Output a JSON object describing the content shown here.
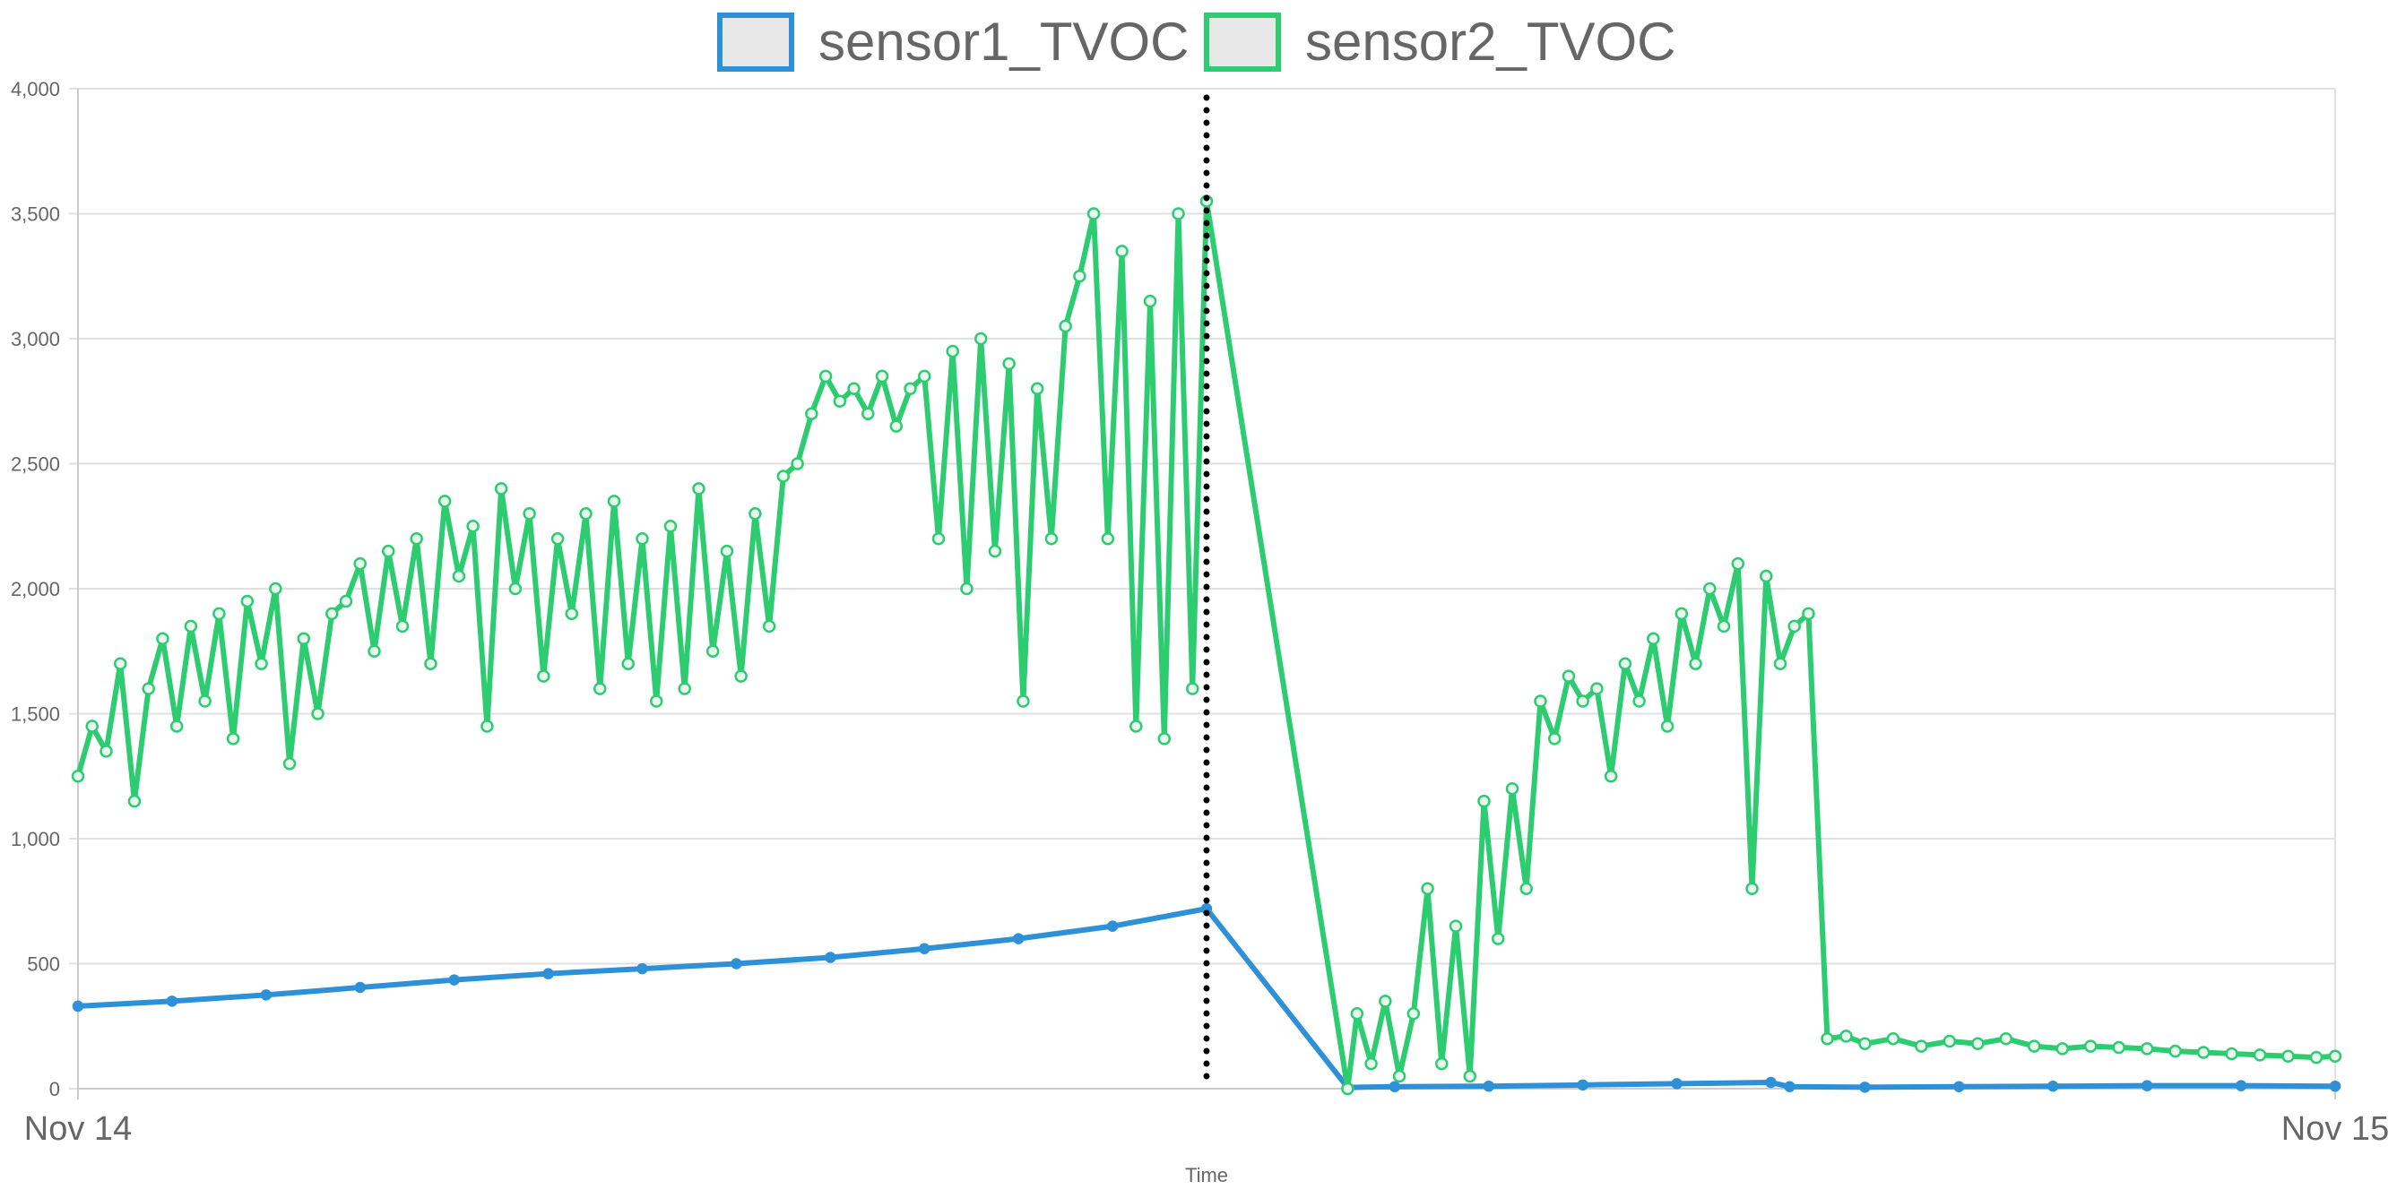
{
  "chart_data": {
    "type": "line",
    "xlabel": "Time",
    "ylabel": "",
    "ylim": [
      0,
      4000
    ],
    "yticks": [
      "0",
      "500",
      "1,000",
      "1,500",
      "2,000",
      "2,500",
      "3,000",
      "3,500",
      "4,000"
    ],
    "ytick_values": [
      0,
      500,
      1000,
      1500,
      2000,
      2500,
      3000,
      3500,
      4000
    ],
    "xlim": [
      "Nov 14 00:00",
      "Nov 15 00:00"
    ],
    "xticks": [
      "Nov 14",
      "Nov 15"
    ],
    "x_unit": "hours since Nov 14 00:00",
    "grid": true,
    "legend_position": "top",
    "annotation": {
      "type": "vertical-dotted-line",
      "x_hours": 12.0
    },
    "series": [
      {
        "name": "sensor1_TVOC",
        "color": "#2e91d8",
        "x": [
          0,
          1,
          2,
          3,
          4,
          5,
          6,
          7,
          8,
          9,
          10,
          11,
          12,
          13.5,
          14,
          15,
          16,
          17,
          18,
          18.2,
          19,
          20,
          21,
          22,
          23,
          24
        ],
        "values": [
          330,
          350,
          375,
          405,
          435,
          460,
          480,
          500,
          525,
          560,
          600,
          650,
          720,
          5,
          8,
          10,
          15,
          20,
          25,
          8,
          6,
          8,
          10,
          12,
          12,
          10
        ]
      },
      {
        "name": "sensor2_TVOC",
        "color": "#2ecc71",
        "x": [
          0,
          0.15,
          0.3,
          0.45,
          0.6,
          0.75,
          0.9,
          1.05,
          1.2,
          1.35,
          1.5,
          1.65,
          1.8,
          1.95,
          2.1,
          2.25,
          2.4,
          2.55,
          2.7,
          2.85,
          3.0,
          3.15,
          3.3,
          3.45,
          3.6,
          3.75,
          3.9,
          4.05,
          4.2,
          4.35,
          4.5,
          4.65,
          4.8,
          4.95,
          5.1,
          5.25,
          5.4,
          5.55,
          5.7,
          5.85,
          6.0,
          6.15,
          6.3,
          6.45,
          6.6,
          6.75,
          6.9,
          7.05,
          7.2,
          7.35,
          7.5,
          7.65,
          7.8,
          7.95,
          8.1,
          8.25,
          8.4,
          8.55,
          8.7,
          8.85,
          9.0,
          9.15,
          9.3,
          9.45,
          9.6,
          9.75,
          9.9,
          10.05,
          10.2,
          10.35,
          10.5,
          10.65,
          10.8,
          10.95,
          11.1,
          11.25,
          11.4,
          11.55,
          11.7,
          11.85,
          12.0,
          13.5,
          13.6,
          13.75,
          13.9,
          14.05,
          14.2,
          14.35,
          14.5,
          14.65,
          14.8,
          14.95,
          15.1,
          15.25,
          15.4,
          15.55,
          15.7,
          15.85,
          16.0,
          16.15,
          16.3,
          16.45,
          16.6,
          16.75,
          16.9,
          17.05,
          17.2,
          17.35,
          17.5,
          17.65,
          17.8,
          17.95,
          18.1,
          18.25,
          18.4,
          18.6,
          18.8,
          19.0,
          19.3,
          19.6,
          19.9,
          20.2,
          20.5,
          20.8,
          21.1,
          21.4,
          21.7,
          22.0,
          22.3,
          22.6,
          22.9,
          23.2,
          23.5,
          23.8,
          24.0
        ],
        "values": [
          1250,
          1450,
          1350,
          1700,
          1150,
          1600,
          1800,
          1450,
          1850,
          1550,
          1900,
          1400,
          1950,
          1700,
          2000,
          1300,
          1800,
          1500,
          1900,
          1950,
          2100,
          1750,
          2150,
          1850,
          2200,
          1700,
          2350,
          2050,
          2250,
          1450,
          2400,
          2000,
          2300,
          1650,
          2200,
          1900,
          2300,
          1600,
          2350,
          1700,
          2200,
          1550,
          2250,
          1600,
          2400,
          1750,
          2150,
          1650,
          2300,
          1850,
          2450,
          2500,
          2700,
          2850,
          2750,
          2800,
          2700,
          2850,
          2650,
          2800,
          2850,
          2200,
          2950,
          2000,
          3000,
          2150,
          2900,
          1550,
          2800,
          2200,
          3050,
          3250,
          3500,
          2200,
          3350,
          1450,
          3150,
          1400,
          3500,
          1600,
          3550,
          0,
          300,
          100,
          350,
          50,
          300,
          800,
          100,
          650,
          50,
          1150,
          600,
          1200,
          800,
          1550,
          1400,
          1650,
          1550,
          1600,
          1250,
          1700,
          1550,
          1800,
          1450,
          1900,
          1700,
          2000,
          1850,
          2100,
          800,
          2050,
          1700,
          1850,
          1900,
          200,
          210,
          180,
          200,
          170,
          190,
          180,
          200,
          170,
          160,
          170,
          165,
          160,
          150,
          145,
          140,
          135,
          130,
          125,
          130
        ]
      }
    ]
  }
}
